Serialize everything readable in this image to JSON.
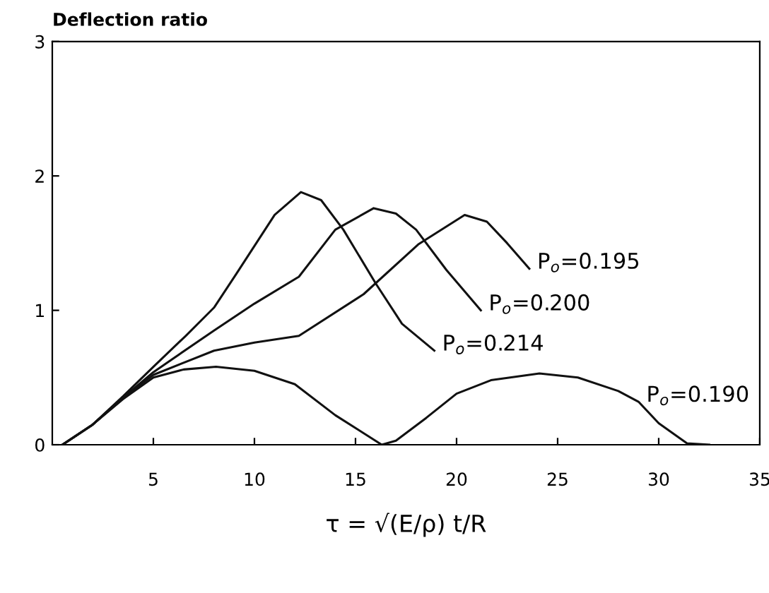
{
  "chart_data": {
    "type": "line",
    "ylabel": "Deflection ratio",
    "xlabel": "τ = √(E/ρ) t/R",
    "xlim": [
      0,
      35
    ],
    "ylim": [
      0,
      3
    ],
    "xticks": [
      5,
      10,
      15,
      20,
      25,
      30,
      35
    ],
    "yticks": [
      0,
      1,
      2,
      3
    ],
    "grid": false,
    "legend": false,
    "marker": "none",
    "line_style": "solid",
    "series": [
      {
        "color": "#111111",
        "x": [
          0.5,
          2,
          3.5,
          5,
          6.6,
          8,
          9.1,
          11,
          12.3,
          13.3,
          14.4,
          16,
          17.3,
          18.9
        ],
        "values": [
          0,
          0.15,
          0.36,
          0.58,
          0.81,
          1.02,
          1.27,
          1.71,
          1.88,
          1.82,
          1.6,
          1.2,
          0.9,
          0.7
        ]
      },
      {
        "color": "#111111",
        "x": [
          0.5,
          2,
          3.5,
          5,
          8,
          10,
          12.2,
          14,
          15.9,
          17,
          18,
          19.5,
          21.2
        ],
        "values": [
          0,
          0.15,
          0.35,
          0.54,
          0.85,
          1.05,
          1.25,
          1.6,
          1.76,
          1.72,
          1.6,
          1.3,
          1.0
        ]
      },
      {
        "color": "#111111",
        "x": [
          0.5,
          2,
          3.5,
          5,
          8,
          10,
          12.2,
          15.4,
          18.1,
          20.4,
          21.5,
          22.5,
          23.6
        ],
        "values": [
          0,
          0.15,
          0.35,
          0.52,
          0.7,
          0.76,
          0.81,
          1.12,
          1.49,
          1.71,
          1.66,
          1.5,
          1.31
        ]
      },
      {
        "color": "#111111",
        "x": [
          0.5,
          2,
          3.5,
          5,
          6.5,
          8.1,
          10,
          12,
          14,
          16.3,
          17,
          18.5,
          20,
          21.7,
          24.1,
          26,
          28,
          29,
          30,
          31.4,
          32.5
        ],
        "values": [
          0,
          0.15,
          0.34,
          0.5,
          0.56,
          0.58,
          0.55,
          0.45,
          0.22,
          0,
          0.03,
          0.2,
          0.38,
          0.48,
          0.53,
          0.5,
          0.4,
          0.32,
          0.16,
          0.01,
          0
        ]
      }
    ],
    "annotations": [
      {
        "text": "P$_{o}$=0.214",
        "x": 18.9,
        "y": 0.7
      },
      {
        "text": "P$_{o}$=0.200",
        "x": 21.2,
        "y": 1.0
      },
      {
        "text": "P$_{o}$=0.195",
        "x": 23.6,
        "y": 1.31
      },
      {
        "text": "P$_{o}$=0.190",
        "x": 29,
        "y": 0.32
      }
    ]
  }
}
